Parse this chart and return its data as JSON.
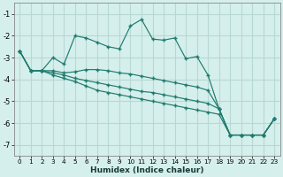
{
  "xlabel": "Humidex (Indice chaleur)",
  "xlim": [
    -0.5,
    23.5
  ],
  "ylim": [
    -7.5,
    -0.5
  ],
  "yticks": [
    -7,
    -6,
    -5,
    -4,
    -3,
    -2,
    -1
  ],
  "xticks": [
    0,
    1,
    2,
    3,
    4,
    5,
    6,
    7,
    8,
    9,
    10,
    11,
    12,
    13,
    14,
    15,
    16,
    17,
    18,
    19,
    20,
    21,
    22,
    23
  ],
  "background_color": "#d5efec",
  "grid_color": "#b8d8d4",
  "line_color": "#1e7b6e",
  "lines": [
    [
      -2.7,
      -3.6,
      -3.6,
      -3.0,
      -3.3,
      -2.0,
      -2.1,
      -2.3,
      -2.5,
      -2.6,
      -1.55,
      -1.25,
      -2.15,
      -2.2,
      -2.1,
      -3.05,
      -2.95,
      -3.8,
      -5.35,
      -6.55,
      -6.55,
      -6.55,
      -6.55,
      -5.8
    ],
    [
      -2.7,
      -3.6,
      -3.6,
      -3.6,
      -3.7,
      -3.65,
      -3.55,
      -3.55,
      -3.6,
      -3.7,
      -3.75,
      -3.85,
      -3.95,
      -4.05,
      -4.15,
      -4.25,
      -4.35,
      -4.5,
      -5.35,
      -6.55,
      -6.55,
      -6.55,
      -6.55,
      -5.8
    ],
    [
      -2.7,
      -3.6,
      -3.6,
      -3.7,
      -3.8,
      -3.95,
      -4.05,
      -4.15,
      -4.25,
      -4.35,
      -4.45,
      -4.55,
      -4.6,
      -4.7,
      -4.8,
      -4.9,
      -5.0,
      -5.1,
      -5.35,
      -6.55,
      -6.55,
      -6.55,
      -6.55,
      -5.8
    ],
    [
      -2.7,
      -3.6,
      -3.6,
      -3.8,
      -3.95,
      -4.1,
      -4.3,
      -4.5,
      -4.6,
      -4.7,
      -4.8,
      -4.9,
      -5.0,
      -5.1,
      -5.2,
      -5.3,
      -5.4,
      -5.5,
      -5.6,
      -6.55,
      -6.55,
      -6.55,
      -6.55,
      -5.8
    ]
  ]
}
